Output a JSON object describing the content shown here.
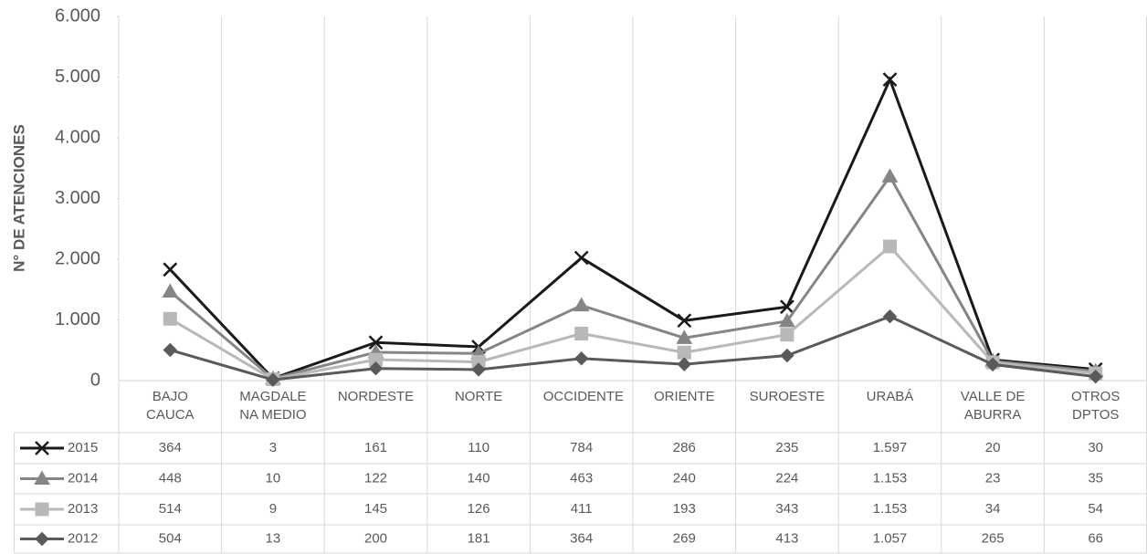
{
  "chart_data": {
    "type": "stacked_line",
    "y_label": "N° DE ATENCIONES",
    "categories": [
      "BAJO CAUCA",
      "MAGDALE NA MEDIO",
      "NORDESTE",
      "NORTE",
      "OCCIDENTE",
      "ORIENTE",
      "SUROESTE",
      "URABÁ",
      "VALLE DE ABURRA",
      "OTROS DPTOS"
    ],
    "series": [
      {
        "name": "2015",
        "color": "#1a1a1a",
        "marker": "x",
        "values": [
          364,
          3,
          161,
          110,
          784,
          286,
          235,
          1597,
          20,
          30
        ],
        "value_labels": [
          "364",
          "3",
          "161",
          "110",
          "784",
          "286",
          "235",
          "1.597",
          "20",
          "30"
        ]
      },
      {
        "name": "2014",
        "color": "#858585",
        "marker": "triangle",
        "values": [
          448,
          10,
          122,
          140,
          463,
          240,
          224,
          1153,
          23,
          35
        ],
        "value_labels": [
          "448",
          "10",
          "122",
          "140",
          "463",
          "240",
          "224",
          "1.153",
          "23",
          "35"
        ]
      },
      {
        "name": "2013",
        "color": "#b8b8b8",
        "marker": "square",
        "values": [
          514,
          9,
          145,
          126,
          411,
          193,
          343,
          1153,
          34,
          54
        ],
        "value_labels": [
          "514",
          "9",
          "145",
          "126",
          "411",
          "193",
          "343",
          "1.153",
          "34",
          "54"
        ]
      },
      {
        "name": "2012",
        "color": "#5a5a5a",
        "marker": "diamond",
        "values": [
          504,
          13,
          200,
          181,
          364,
          269,
          413,
          1057,
          265,
          66
        ],
        "value_labels": [
          "504",
          "13",
          "200",
          "181",
          "364",
          "269",
          "413",
          "1.057",
          "265",
          "66"
        ]
      }
    ],
    "ylim": [
      0,
      6000
    ],
    "yticks": [
      0,
      {
        "value": 1000,
        "label": "1.000"
      },
      {
        "value": 2000,
        "label": "2.000"
      },
      {
        "value": 3000,
        "label": "3.000"
      },
      {
        "value": 4000,
        "label": "4.000"
      },
      {
        "value": 5000,
        "label": "5.000"
      },
      {
        "value": 6000,
        "label": "6.000"
      }
    ]
  }
}
